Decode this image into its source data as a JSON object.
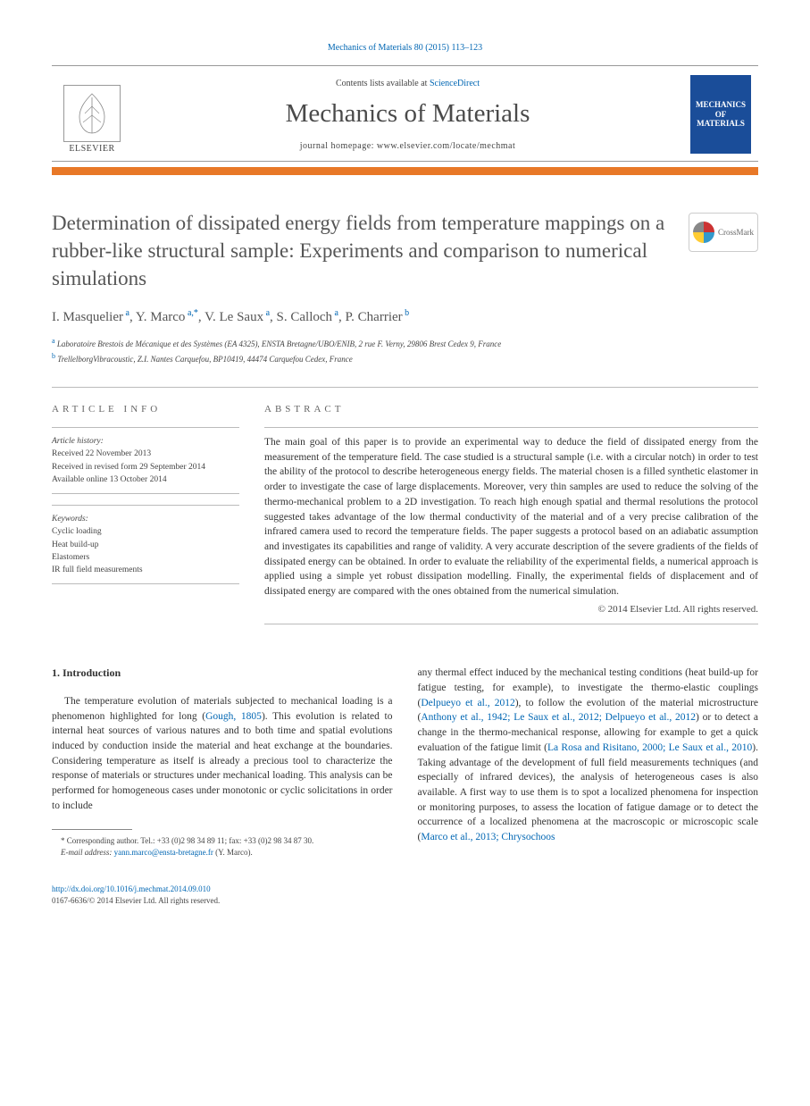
{
  "header": {
    "journal_ref": "Mechanics of Materials 80 (2015) 113–123",
    "contents_prefix": "Contents lists available at ",
    "contents_link": "ScienceDirect",
    "journal_name": "Mechanics of Materials",
    "homepage_prefix": "journal homepage: ",
    "homepage_url": "www.elsevier.com/locate/mechmat",
    "elsevier_label": "ELSEVIER",
    "cover_title": "MECHANICS OF MATERIALS",
    "crossmark_label": "CrossMark"
  },
  "article": {
    "title": "Determination of dissipated energy fields from temperature mappings on a rubber-like structural sample: Experiments and comparison to numerical simulations",
    "authors_html": "I. Masquelier<sup> a</sup>, Y. Marco<sup> a,*</sup>, V. Le Saux<sup> a</sup>, S. Calloch<sup> a</sup>, P. Charrier<sup> b</sup>",
    "affiliations": [
      {
        "sup": "a",
        "text": "Laboratoire Brestois de Mécanique et des Systèmes (EA 4325), ENSTA Bretagne/UBO/ENIB, 2 rue F. Verny, 29806 Brest Cedex 9, France"
      },
      {
        "sup": "b",
        "text": "TrellelborgVibracoustic, Z.I. Nantes Carquefou, BP10419, 44474 Carquefou Cedex, France"
      }
    ]
  },
  "info": {
    "header": "article info",
    "history_label": "Article history:",
    "history": [
      "Received 22 November 2013",
      "Received in revised form 29 September 2014",
      "Available online 13 October 2014"
    ],
    "keywords_label": "Keywords:",
    "keywords": [
      "Cyclic loading",
      "Heat build-up",
      "Elastomers",
      "IR full field measurements"
    ]
  },
  "abstract": {
    "header": "abstract",
    "text": "The main goal of this paper is to provide an experimental way to deduce the field of dissipated energy from the measurement of the temperature field. The case studied is a structural sample (i.e. with a circular notch) in order to test the ability of the protocol to describe heterogeneous energy fields. The material chosen is a filled synthetic elastomer in order to investigate the case of large displacements. Moreover, very thin samples are used to reduce the solving of the thermo-mechanical problem to a 2D investigation. To reach high enough spatial and thermal resolutions the protocol suggested takes advantage of the low thermal conductivity of the material and of a very precise calibration of the infrared camera used to record the temperature fields. The paper suggests a protocol based on an adiabatic assumption and investigates its capabilities and range of validity. A very accurate description of the severe gradients of the fields of dissipated energy can be obtained. In order to evaluate the reliability of the experimental fields, a numerical approach is applied using a simple yet robust dissipation modelling. Finally, the experimental fields of displacement and of dissipated energy are compared with the ones obtained from the numerical simulation.",
    "copyright": "© 2014 Elsevier Ltd. All rights reserved."
  },
  "body": {
    "section_heading": "1. Introduction",
    "col1_parts": [
      {
        "type": "text",
        "value": "The temperature evolution of materials subjected to mechanical loading is a phenomenon highlighted for long ("
      },
      {
        "type": "cite",
        "value": "Gough, 1805"
      },
      {
        "type": "text",
        "value": "). This evolution is related to internal heat sources of various natures and to both time and spatial evolutions induced by conduction inside the material and heat exchange at the boundaries. Considering temperature as itself is already a precious tool to characterize the response of materials or structures under mechanical loading. This analysis can be performed for homogeneous cases under monotonic or cyclic solicitations in order to include"
      }
    ],
    "col2_parts": [
      {
        "type": "text",
        "value": "any thermal effect induced by the mechanical testing conditions (heat build-up for fatigue testing, for example), to investigate the thermo-elastic couplings ("
      },
      {
        "type": "cite",
        "value": "Delpueyo et al., 2012"
      },
      {
        "type": "text",
        "value": "), to follow the evolution of the material microstructure ("
      },
      {
        "type": "cite",
        "value": "Anthony et al., 1942; Le Saux et al., 2012; Delpueyo et al., 2012"
      },
      {
        "type": "text",
        "value": ") or to detect a change in the thermo-mechanical response, allowing for example to get a quick evaluation of the fatigue limit ("
      },
      {
        "type": "cite",
        "value": "La Rosa and Risitano, 2000; Le Saux et al., 2010"
      },
      {
        "type": "text",
        "value": "). Taking advantage of the development of full field measurements techniques (and especially of infrared devices), the analysis of heterogeneous cases is also available. A first way to use them is to spot a localized phenomena for inspection or monitoring purposes, to assess the location of fatigue damage or to detect the occurrence of a localized phenomena at the macroscopic or microscopic scale ("
      },
      {
        "type": "cite",
        "value": "Marco et al., 2013; Chrysochoos"
      }
    ]
  },
  "footnotes": {
    "corr_prefix": "* Corresponding author. Tel.: +33 (0)2 98 34 89 11; fax: +33 (0)2 98 34 87 30.",
    "email_label": "E-mail address:",
    "email": "yann.marco@ensta-bretagne.fr",
    "email_suffix": "(Y. Marco)."
  },
  "doi": {
    "link": "http://dx.doi.org/10.1016/j.mechmat.2014.09.010",
    "issn_line": "0167-6636/© 2014 Elsevier Ltd. All rights reserved."
  },
  "colors": {
    "link": "#0066b3",
    "divider": "#e87827",
    "cover_bg": "#1a4d99"
  }
}
